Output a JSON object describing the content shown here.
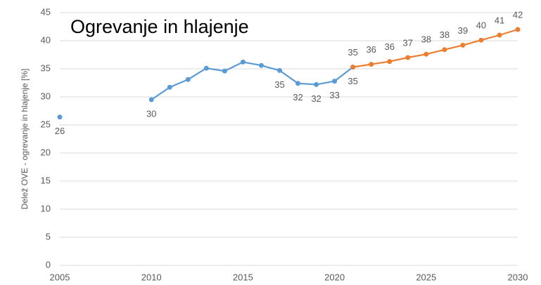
{
  "chart_data": {
    "type": "line",
    "title": "Ogrevanje in hlajenje",
    "y_label": "Delež OVE - ogrevanje in hlajenje [%]",
    "x": [
      2005,
      2006,
      2007,
      2008,
      2009,
      2010,
      2011,
      2012,
      2013,
      2014,
      2015,
      2016,
      2017,
      2018,
      2019,
      2020,
      2021,
      2022,
      2023,
      2024,
      2025,
      2026,
      2027,
      2028,
      2029,
      2030
    ],
    "series": [
      {
        "color": "#5b9bd5",
        "values": [
          26.4,
          null,
          null,
          null,
          null,
          29.5,
          31.7,
          33.1,
          35.1,
          34.6,
          36.2,
          35.6,
          34.7,
          32.4,
          32.2,
          32.8,
          35.3,
          null,
          null,
          null,
          null,
          null,
          null,
          null,
          null,
          null
        ],
        "value_labels": [
          "26",
          null,
          null,
          null,
          null,
          "30",
          null,
          null,
          null,
          null,
          null,
          null,
          "35",
          "32",
          "32",
          "33",
          "35",
          null,
          null,
          null,
          null,
          null,
          null,
          null,
          null,
          null
        ]
      },
      {
        "color": "#ed7d31",
        "values": [
          null,
          null,
          null,
          null,
          null,
          null,
          null,
          null,
          null,
          null,
          null,
          null,
          null,
          null,
          null,
          null,
          35.3,
          35.8,
          36.3,
          37.0,
          37.6,
          38.4,
          39.2,
          40.1,
          41.0,
          42.0
        ],
        "value_labels": [
          null,
          null,
          null,
          null,
          null,
          null,
          null,
          null,
          null,
          null,
          null,
          null,
          null,
          null,
          null,
          null,
          "35",
          "36",
          "36",
          "37",
          "38",
          "38",
          "39",
          "40",
          "41",
          "42"
        ]
      }
    ],
    "xlim": [
      2005,
      2030
    ],
    "xticks": [
      2005,
      2010,
      2015,
      2020,
      2025,
      2030
    ],
    "ylim": [
      0,
      45
    ],
    "yticks": [
      0,
      5,
      10,
      15,
      20,
      25,
      30,
      35,
      40,
      45
    ],
    "grid": true
  }
}
